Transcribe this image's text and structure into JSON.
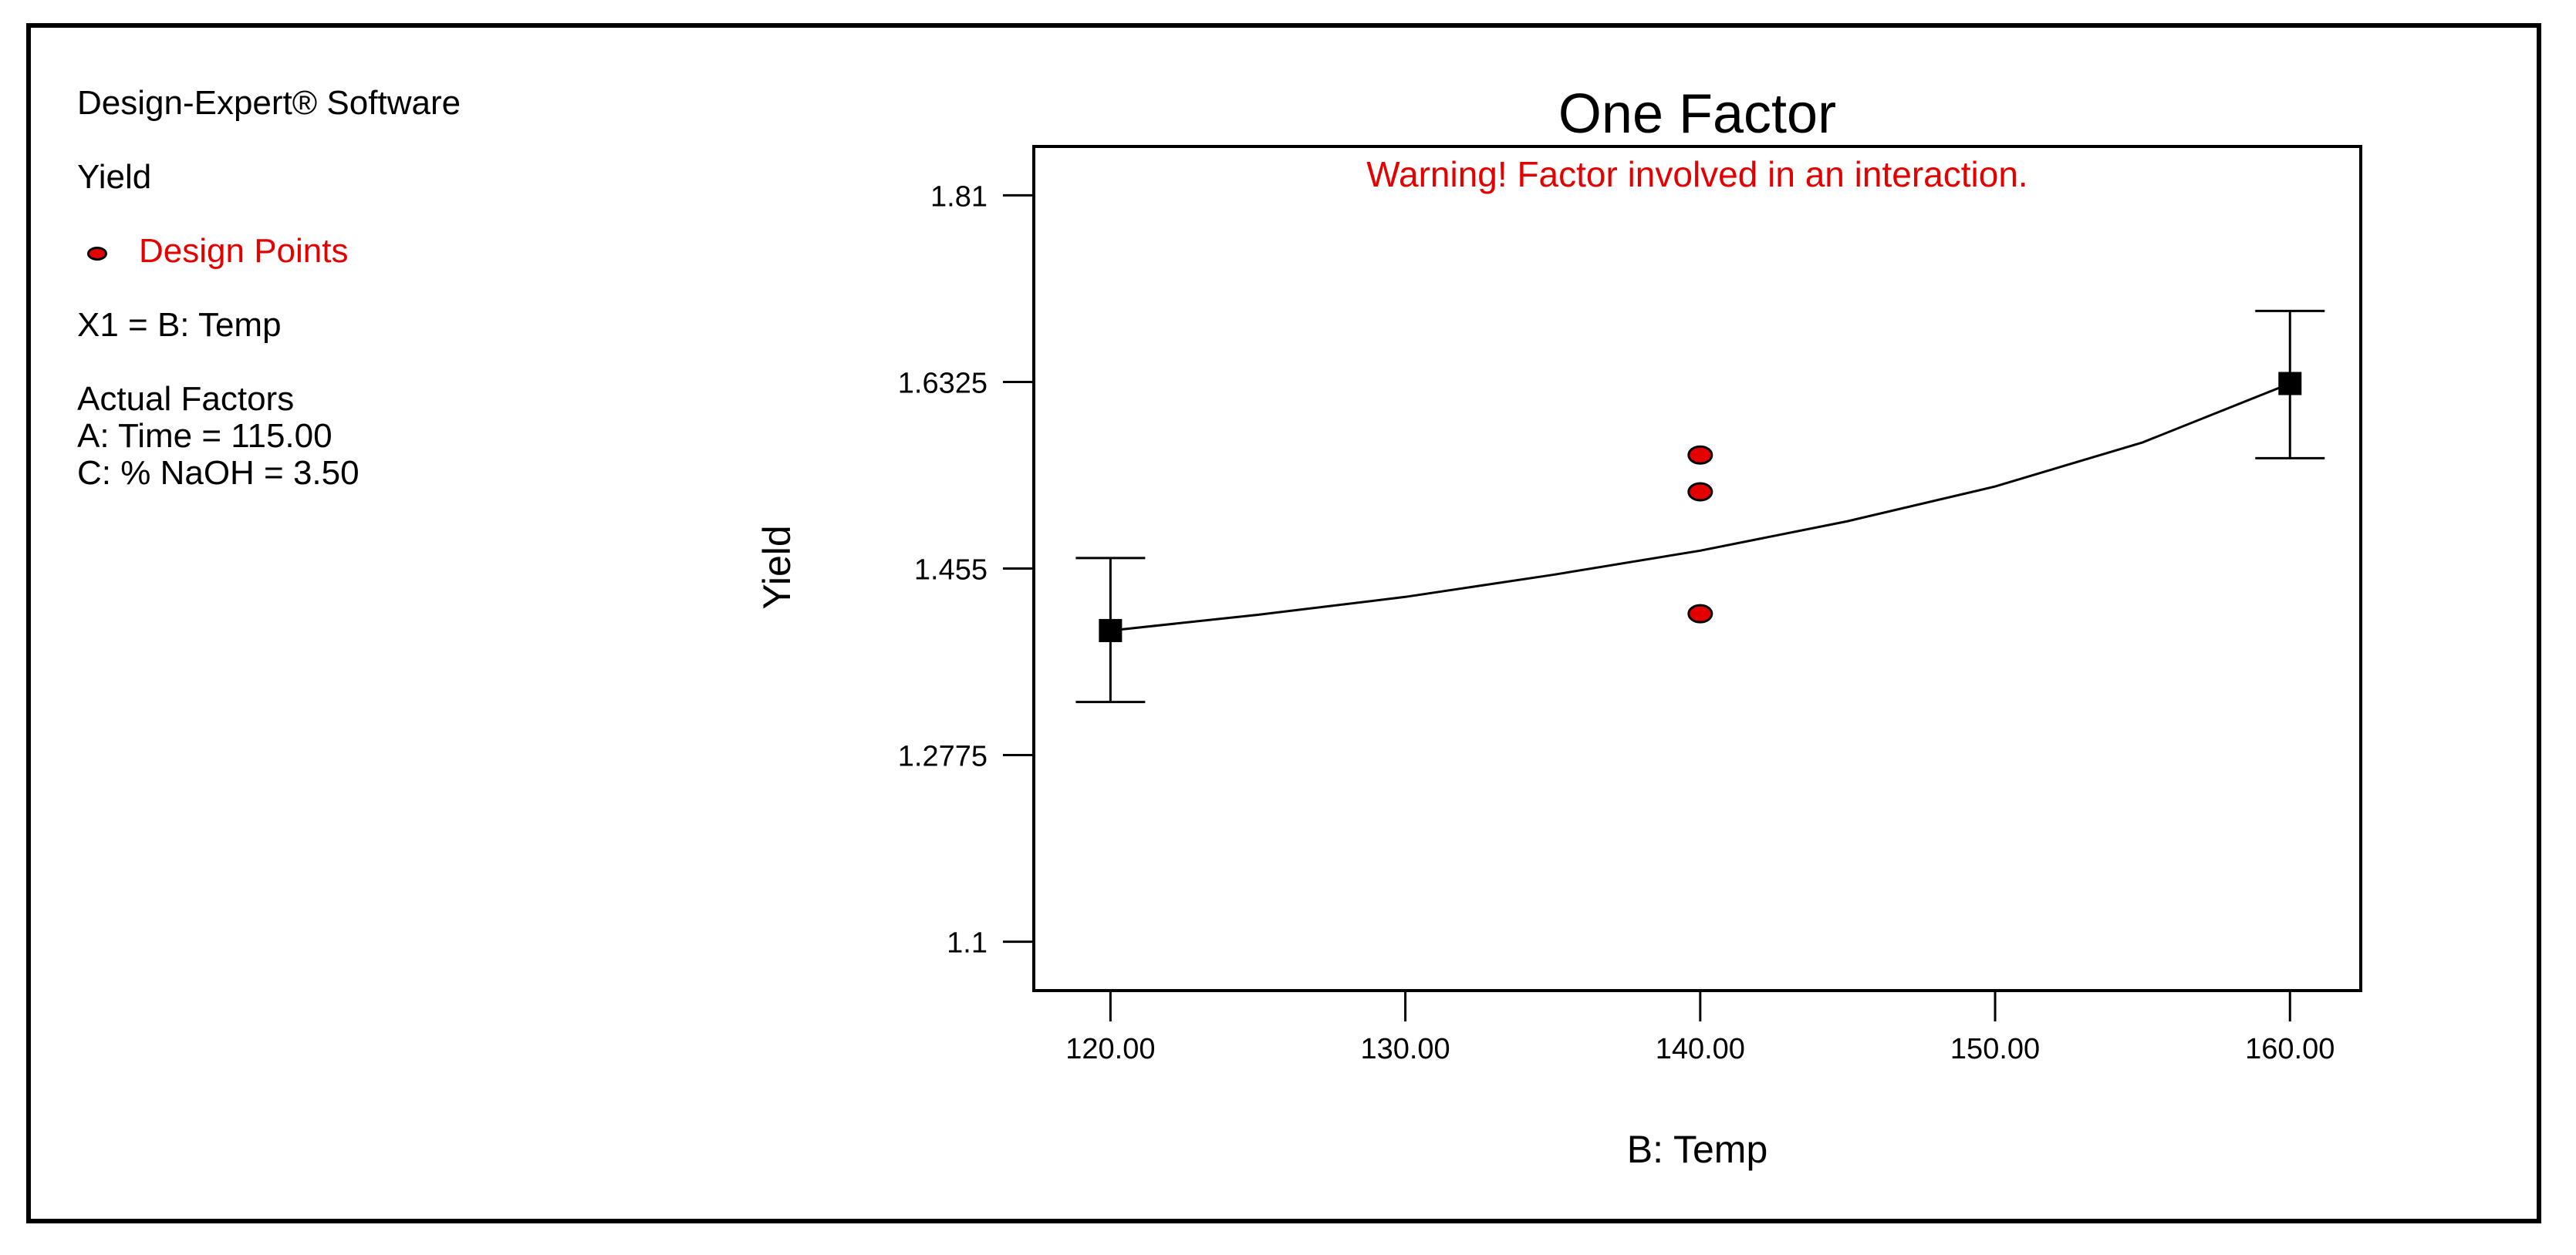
{
  "legend": {
    "software": "Design-Expert® Software",
    "response": "Yield",
    "design_points_label": "Design Points",
    "factor_mapping": "X1 = B: Temp",
    "actual_factors_title": "Actual Factors",
    "factor_a": "A: Time = 115.00",
    "factor_c": "C: % NaOH = 3.50"
  },
  "colors": {
    "design_point": "#e50000",
    "warning_text": "#e50000",
    "line": "#000000"
  },
  "chart_data": {
    "type": "line",
    "title": "One Factor",
    "warning": "Warning! Factor involved in an interaction.",
    "xlabel": "B: Temp",
    "ylabel": "Yield",
    "xlim": [
      117.4,
      162.4
    ],
    "ylim": [
      1.0535,
      1.8565
    ],
    "x_ticks": [
      120,
      130,
      140,
      150,
      160
    ],
    "x_tick_labels": [
      "120.00",
      "130.00",
      "140.00",
      "150.00",
      "160.00"
    ],
    "y_ticks": [
      1.1,
      1.2775,
      1.455,
      1.6325,
      1.81
    ],
    "y_tick_labels": [
      "1.1",
      "1.2775",
      "1.455",
      "1.6325",
      "1.81"
    ],
    "prediction": {
      "x": [
        120,
        125,
        130,
        135,
        140,
        145,
        150,
        155,
        160
      ],
      "y": [
        1.396,
        1.411,
        1.428,
        1.449,
        1.472,
        1.5,
        1.533,
        1.575,
        1.631
      ]
    },
    "predicted_points": [
      {
        "x": 120,
        "y": 1.396,
        "low": 1.328,
        "high": 1.465
      },
      {
        "x": 160,
        "y": 1.631,
        "low": 1.56,
        "high": 1.7
      }
    ],
    "design_points": [
      {
        "x": 140,
        "y": 1.563
      },
      {
        "x": 140,
        "y": 1.528
      },
      {
        "x": 140,
        "y": 1.412
      }
    ]
  }
}
